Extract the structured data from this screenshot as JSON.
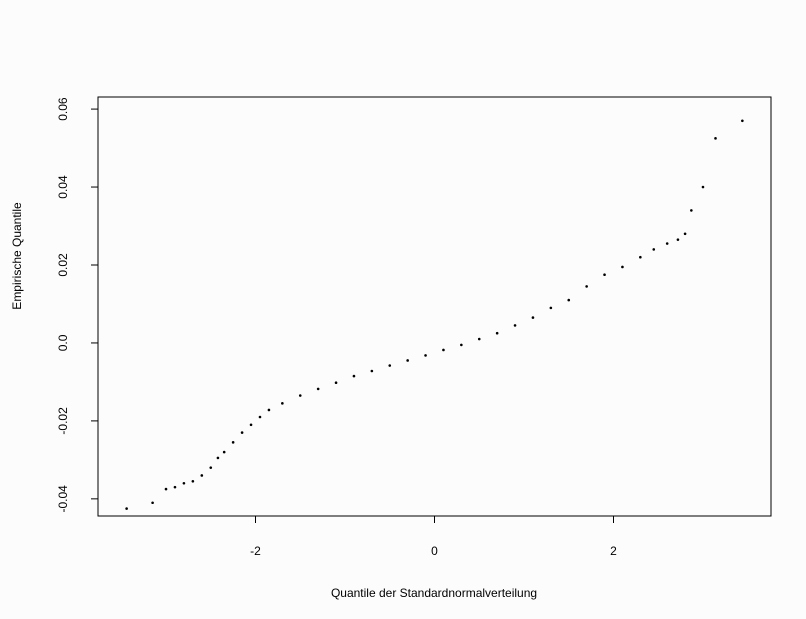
{
  "chart_data": {
    "type": "scatter",
    "xlabel": "Quantile der Standardnormalverteilung",
    "ylabel": "Empirische Quantile",
    "x": [
      -3.44,
      -3.15,
      -3.0,
      -2.9,
      -2.8,
      -2.7,
      -2.6,
      -2.5,
      -2.42,
      -2.35,
      -2.25,
      -2.15,
      -2.05,
      -1.95,
      -1.85,
      -1.7,
      -1.5,
      -1.3,
      -1.1,
      -0.9,
      -0.7,
      -0.5,
      -0.3,
      -0.1,
      0.1,
      0.3,
      0.5,
      0.7,
      0.9,
      1.1,
      1.3,
      1.5,
      1.7,
      1.9,
      2.1,
      2.3,
      2.45,
      2.6,
      2.72,
      2.8,
      2.87,
      3.0,
      3.14,
      3.44
    ],
    "values": [
      -0.0425,
      -0.041,
      -0.0375,
      -0.037,
      -0.036,
      -0.0355,
      -0.034,
      -0.032,
      -0.0295,
      -0.028,
      -0.0255,
      -0.023,
      -0.021,
      -0.019,
      -0.0172,
      -0.0155,
      -0.0135,
      -0.0118,
      -0.0102,
      -0.0085,
      -0.0072,
      -0.0058,
      -0.0045,
      -0.0032,
      -0.0018,
      -0.0005,
      0.001,
      0.0025,
      0.0045,
      0.0065,
      0.009,
      0.011,
      0.0145,
      0.0175,
      0.0195,
      0.022,
      0.024,
      0.0255,
      0.0265,
      0.028,
      0.034,
      0.04,
      0.0525,
      0.057
    ],
    "color": "#000000",
    "xlim": [
      -3.76,
      3.76
    ],
    "xticks": [
      -2,
      0,
      2
    ],
    "ylim": [
      -0.0444,
      0.0631
    ],
    "yticks": [
      -0.04,
      -0.02,
      {
        "value": 0,
        "label": "0.0"
      },
      0.02,
      0.04,
      0.06
    ]
  }
}
